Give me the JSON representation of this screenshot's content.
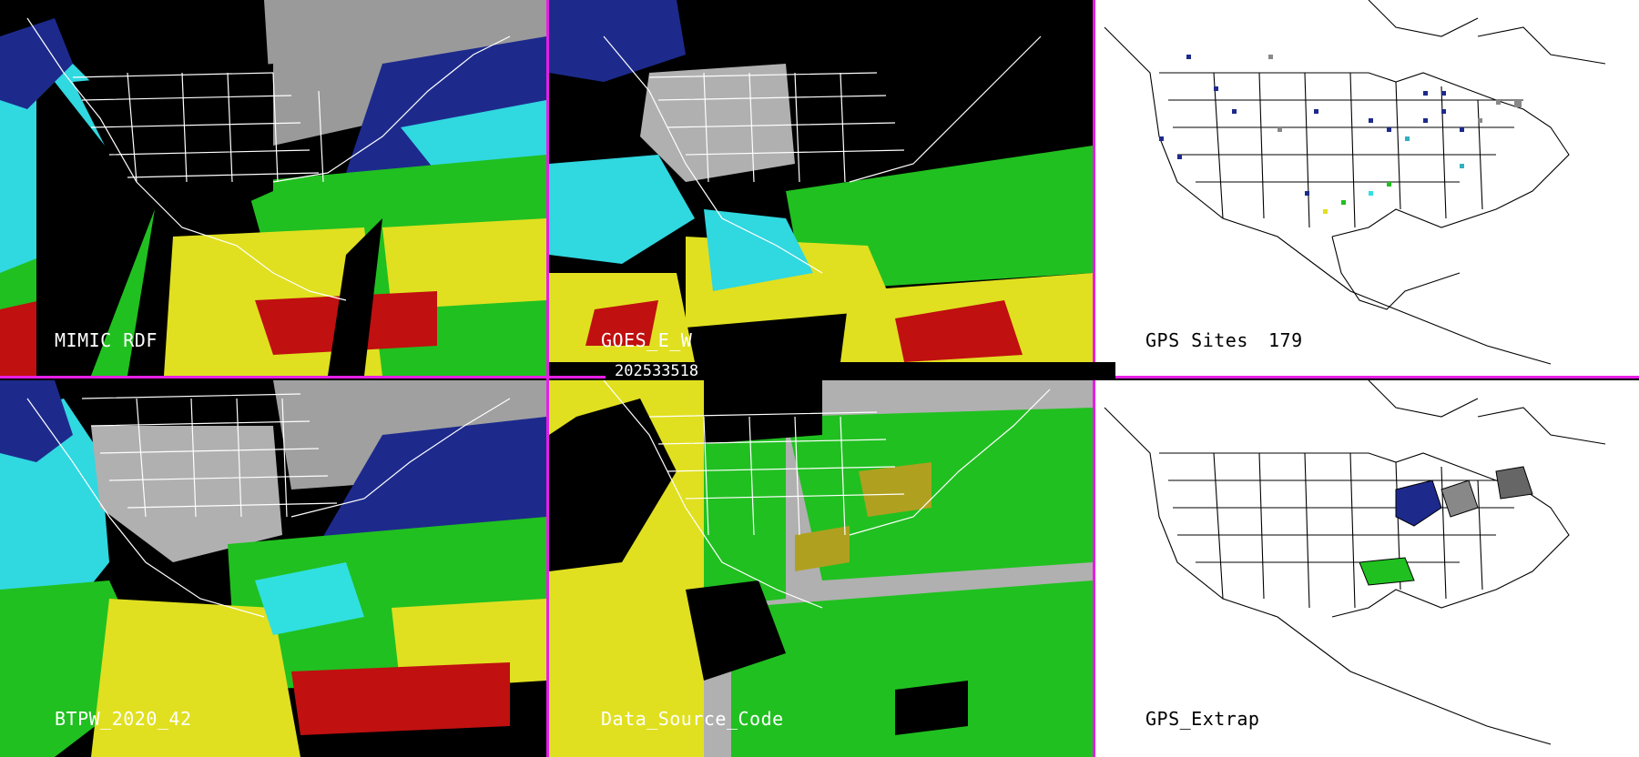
{
  "panels": [
    {
      "id": "mimic",
      "label": "MIMIC RDF"
    },
    {
      "id": "goes",
      "label": "GOES_E_W"
    },
    {
      "id": "gps-sites",
      "label": "GPS Sites",
      "count": "179"
    },
    {
      "id": "btpw",
      "label": "BTPW_2020_42"
    },
    {
      "id": "dsc",
      "label": "Data_Source_Code"
    },
    {
      "id": "gps-extrap",
      "label": "GPS_Extrap"
    }
  ],
  "timestamp": "202533518",
  "colors": {
    "divider": "#e61ee6",
    "cyan": "#30e0e0",
    "blue": "#1d2a8c",
    "green": "#20c020",
    "yellow": "#e0e020",
    "red": "#c01010",
    "gray": "#b0b0b0"
  }
}
